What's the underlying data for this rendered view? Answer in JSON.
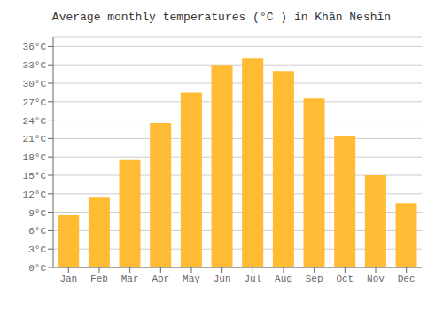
{
  "chart_data": {
    "type": "bar",
    "title": "Average monthly temperatures (°C ) in Khān Neshīn",
    "categories": [
      "Jan",
      "Feb",
      "Mar",
      "Apr",
      "May",
      "Jun",
      "Jul",
      "Aug",
      "Sep",
      "Oct",
      "Nov",
      "Dec"
    ],
    "values": [
      8.5,
      11.5,
      17.5,
      23.5,
      28.5,
      33.0,
      34.0,
      32.0,
      27.5,
      21.5,
      15.0,
      10.5
    ],
    "color": "#FFBB33",
    "ylim": [
      0,
      37.5
    ],
    "yticks": [
      {
        "value": 0,
        "label": "0°C"
      },
      {
        "value": 3,
        "label": "3°C"
      },
      {
        "value": 6,
        "label": "6°C"
      },
      {
        "value": 9,
        "label": "9°C"
      },
      {
        "value": 12,
        "label": "12°C"
      },
      {
        "value": 15,
        "label": "15°C"
      },
      {
        "value": 18,
        "label": "18°C"
      },
      {
        "value": 21,
        "label": "21°C"
      },
      {
        "value": 24,
        "label": "24°C"
      },
      {
        "value": 27,
        "label": "27°C"
      },
      {
        "value": 30,
        "label": "30°C"
      },
      {
        "value": 33,
        "label": "33°C"
      },
      {
        "value": 36,
        "label": "36°C"
      }
    ],
    "grid": true
  }
}
